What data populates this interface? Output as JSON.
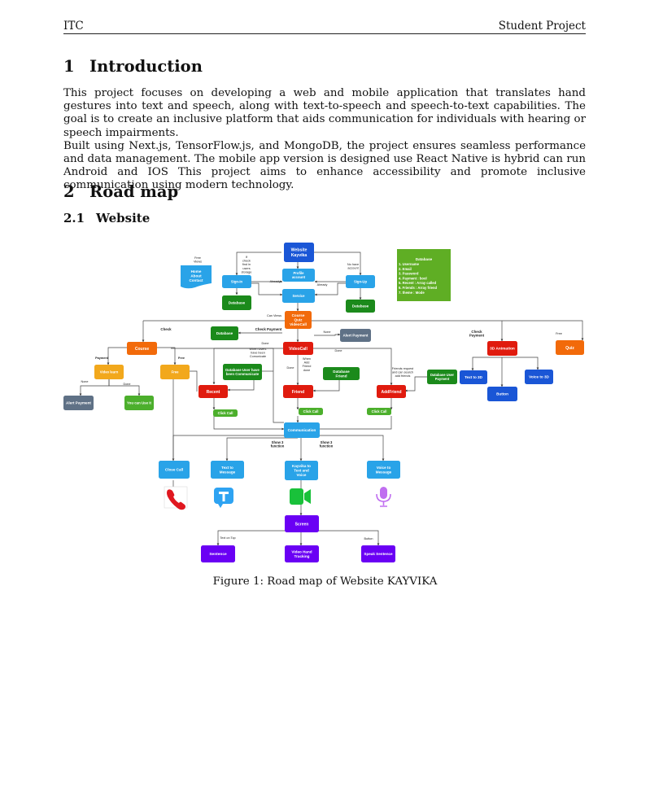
{
  "header": {
    "left": "ITC",
    "right": "Student Project"
  },
  "sections": [
    {
      "number": "1",
      "title": "Introduction"
    },
    {
      "number": "2",
      "title": "Road map"
    }
  ],
  "subsection": {
    "number": "2.1",
    "title": "Website"
  },
  "intro": {
    "p1": "This project focuses on developing a web and mobile application that translates hand gestures into text and speech, along with text-to-speech and speech-to-text capabilities. The goal is to create an inclusive platform that aids communication for individuals with hearing or speech impairments.",
    "p2": "Built using Next.js, TensorFlow.js, and MongoDB, the project ensures seamless performance and data management. The mobile app version is designed use React Native is hybrid can run Android and IOS This project aims to enhance accessibility and promote inclusive communication using modern technology."
  },
  "figure": {
    "caption": "Figure 1: Road map of Website KAYVIKA",
    "colors": {
      "blue": "#1e88e5",
      "darkblue": "#1a56d6",
      "lightblue": "#29a3e8",
      "green": "#1b8a1b",
      "lightgreen": "#4caf2c",
      "orange": "#f26a0a",
      "yellow": "#f2a81c",
      "red": "#e01b0e",
      "gray": "#5f7186",
      "purple": "#6a00f4",
      "dbgreen": "#5fae24"
    },
    "nodes": {
      "website": "Website Kayvika",
      "home": "Home About Contact",
      "signin": "Sign-In",
      "profile": "Profile account",
      "signup": "Sign-Up",
      "service": "Service",
      "db_left": "Database",
      "db_right": "Database",
      "course_quiz": "Course Quiz VideoCall",
      "db_mid": "Database",
      "alert_top": "Alert Payment",
      "course": "Course",
      "videocall": "VideoCall",
      "anim3d": "3D Animation",
      "quiz": "Quiz",
      "video_learn": "Video learn",
      "free_box": "Free",
      "db_user_comm": "Database User have been Communicate",
      "db_friend": "Database Friend",
      "db_user_payment": "Database User Payment",
      "text3d": "Text to 3D",
      "voice3d": "Voice to 3D",
      "button": "Button",
      "alert_left": "Alert Payment",
      "you_can_use": "You can Use It",
      "recent": "Recent",
      "friend": "Friend",
      "addfriend": "AddFriend",
      "click1": "Click Call",
      "click2": "Click Call",
      "click3": "Click Call",
      "communication": "Communication",
      "close_call": "Close Call",
      "text_msg": "Text to Message",
      "kayvika_tv": "Kayvika to Text and Voice",
      "voice_msg": "Voice to Message",
      "screen": "Screen",
      "sentence": "Sentence",
      "hand_tracking": "Video Hand Tracking",
      "speak": "Speak Sentence"
    },
    "database_note": {
      "title": "Database",
      "lines": [
        "1. Username",
        "2. Email",
        "3. Password",
        "4. Payment : bool",
        "5. Recent : Array called",
        "6. Friends : Array friend",
        "7. theme : Mode"
      ]
    },
    "labels": {
      "free_views": "Free Views",
      "if_check": "If check find in users storage",
      "no_have": "No have account",
      "already1": "Already",
      "already2": "Already",
      "can_views": "Can Views",
      "check_left": "Check",
      "check_payment_mid": "Check Payment",
      "none_top": "None",
      "check_payment_right": "Check Payment",
      "free_right": "Free",
      "payment": "Payment",
      "free_left": "Free",
      "when_users": "When Users have been Comunicate",
      "done_mid": "Done",
      "when_add": "When Add Friend done",
      "done_right": "Done",
      "friends_req": "Friends request and can search add friends",
      "none_left": "None",
      "done_left": "Done",
      "done_vc": "Done",
      "show3_left": "Show 3 function",
      "show3_right": "Show 3 function",
      "text_on_top": "Text on Top",
      "button_lbl": "Button"
    }
  }
}
